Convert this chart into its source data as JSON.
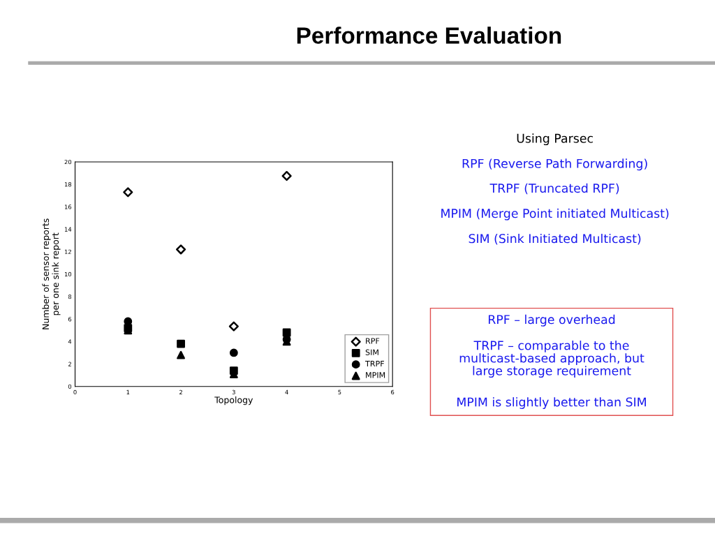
{
  "chart_data": {
    "type": "scatter",
    "title": "Performance Evaluation",
    "xlabel": "Topology",
    "ylabel": "Number of sensor reports\nper one sink report",
    "x": [
      1,
      2,
      3,
      4
    ],
    "series": [
      {
        "name": "RPF",
        "color": "#000000",
        "marker": "diamond",
        "values": [
          17.3,
          12.2,
          5.35,
          18.75
        ]
      },
      {
        "name": "SIM",
        "color": "#000000",
        "marker": "square",
        "values": [
          5.2,
          3.8,
          1.4,
          4.8
        ]
      },
      {
        "name": "TRPF",
        "color": "#000000",
        "marker": "circle",
        "values": [
          5.8,
          null,
          3.0,
          4.2
        ]
      },
      {
        "name": "MPIM",
        "color": "#000000",
        "marker": "triangle",
        "values": [
          5.0,
          2.8,
          1.1,
          4.0
        ]
      }
    ],
    "xlim": [
      0,
      6
    ],
    "xticks": [
      0,
      1,
      2,
      3,
      4,
      5,
      6
    ],
    "ylim": [
      0,
      20
    ],
    "yticks": [
      0,
      2,
      4,
      6,
      8,
      10,
      12,
      14,
      16,
      18,
      20
    ],
    "grid": false,
    "legend": "bottom right",
    "annotations": [
      "Using Parsec",
      "RPF (Reverse Path Forwarding)",
      "TRPF (Truncated RPF)",
      "MPIM (Merge Point initiated Multicast)",
      "SIM (Sink Initiated Multicast)",
      "RPF – large overhead",
      "TRPF – comparable to the\nmulticast-based approach, but\nlarge storage requirement",
      "MPIM is slightly better than SIM"
    ]
  }
}
